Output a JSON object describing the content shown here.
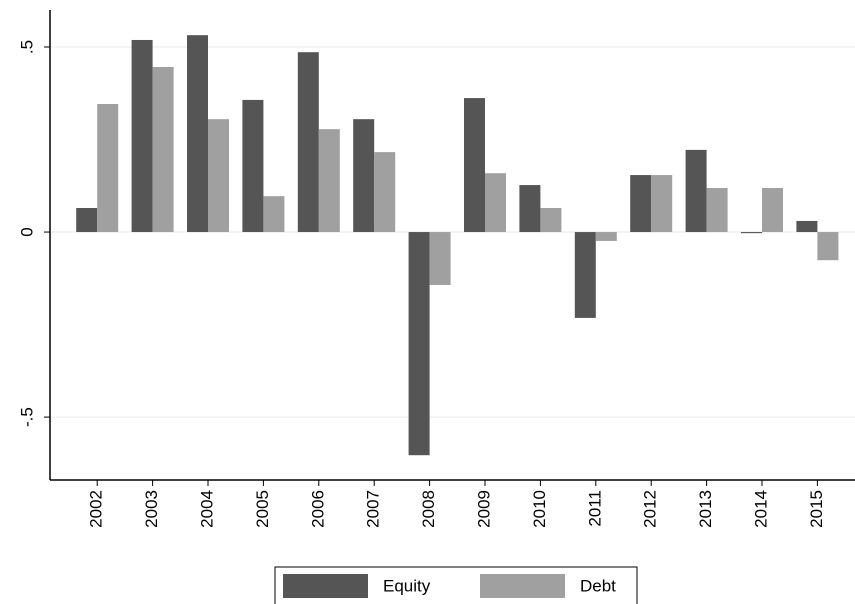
{
  "chart_data": {
    "type": "bar",
    "categories": [
      "2002",
      "2003",
      "2004",
      "2005",
      "2006",
      "2007",
      "2008",
      "2009",
      "2010",
      "2011",
      "2012",
      "2013",
      "2014",
      "2015"
    ],
    "series": [
      {
        "name": "Equity",
        "color": "#555555",
        "values": [
          0.065,
          0.519,
          0.532,
          0.357,
          0.486,
          0.305,
          -0.603,
          0.362,
          0.127,
          -0.232,
          0.154,
          0.222,
          -0.003,
          0.03
        ]
      },
      {
        "name": "Debt",
        "color": "#a0a0a0",
        "values": [
          0.346,
          0.446,
          0.305,
          0.097,
          0.278,
          0.216,
          -0.143,
          0.159,
          0.065,
          -0.024,
          0.154,
          0.119,
          0.119,
          -0.076
        ]
      }
    ],
    "ylim": [
      -0.67,
      0.6
    ],
    "yticks": [
      {
        "value": -0.5,
        "label": "-.5"
      },
      0,
      {
        "value": 0.5,
        "label": ".5"
      }
    ],
    "grid": true,
    "legend": "bottom"
  }
}
